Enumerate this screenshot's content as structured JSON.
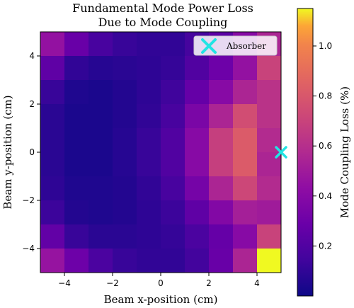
{
  "chart_data": {
    "type": "heatmap",
    "title": [
      "Fundamental Mode Power Loss",
      "Due to Mode Coupling"
    ],
    "xlabel": "Beam x-position (cm)",
    "ylabel": "Beam y-position (cm)",
    "colorbar_label": "Mode Coupling Loss (%)",
    "colormap": "plasma",
    "xlim": [
      -5,
      5
    ],
    "ylim": [
      -5,
      5
    ],
    "clim": [
      0.0,
      1.15
    ],
    "x_ticks": [
      -4,
      -2,
      0,
      2,
      4
    ],
    "y_ticks": [
      -4,
      -2,
      0,
      2,
      4
    ],
    "x_tick_labels": [
      "−4",
      "−2",
      "0",
      "2",
      "4"
    ],
    "y_tick_labels": [
      "−4",
      "−2",
      "0",
      "2",
      "4"
    ],
    "colorbar_ticks": [
      0.2,
      0.4,
      0.6,
      0.8,
      1.0
    ],
    "colorbar_tick_labels": [
      "0.2",
      "0.4",
      "0.6",
      "0.8",
      "1.0"
    ],
    "x_centers": [
      -4.5,
      -3.5,
      -2.5,
      -1.5,
      -0.5,
      0.5,
      1.5,
      2.5,
      3.5,
      4.5
    ],
    "y_centers": [
      4.5,
      3.5,
      2.5,
      1.5,
      0.5,
      -0.5,
      -1.5,
      -2.5,
      -3.5,
      -4.5
    ],
    "values": [
      [
        0.45,
        0.28,
        0.17,
        0.12,
        0.1,
        0.1,
        0.16,
        0.24,
        0.4,
        0.55
      ],
      [
        0.25,
        0.1,
        0.07,
        0.08,
        0.09,
        0.11,
        0.2,
        0.3,
        0.45,
        0.7
      ],
      [
        0.12,
        0.05,
        0.04,
        0.06,
        0.09,
        0.14,
        0.27,
        0.4,
        0.55,
        0.62
      ],
      [
        0.08,
        0.04,
        0.04,
        0.06,
        0.1,
        0.17,
        0.35,
        0.55,
        0.75,
        0.62
      ],
      [
        0.08,
        0.04,
        0.04,
        0.07,
        0.12,
        0.2,
        0.4,
        0.68,
        0.82,
        0.58
      ],
      [
        0.08,
        0.04,
        0.04,
        0.07,
        0.12,
        0.2,
        0.4,
        0.68,
        0.82,
        0.55
      ],
      [
        0.09,
        0.05,
        0.05,
        0.06,
        0.1,
        0.17,
        0.33,
        0.55,
        0.72,
        0.58
      ],
      [
        0.13,
        0.06,
        0.05,
        0.06,
        0.09,
        0.13,
        0.25,
        0.38,
        0.52,
        0.5
      ],
      [
        0.26,
        0.12,
        0.08,
        0.08,
        0.09,
        0.11,
        0.18,
        0.27,
        0.4,
        0.7
      ],
      [
        0.46,
        0.3,
        0.18,
        0.12,
        0.1,
        0.1,
        0.15,
        0.28,
        0.55,
        1.15
      ]
    ],
    "legend": {
      "entries": [
        "Absorber"
      ],
      "position": "upper right"
    },
    "markers": [
      {
        "label": "Absorber",
        "x": 5.0,
        "y": 0.0,
        "style": "x",
        "color": "#22e4e4"
      }
    ]
  }
}
